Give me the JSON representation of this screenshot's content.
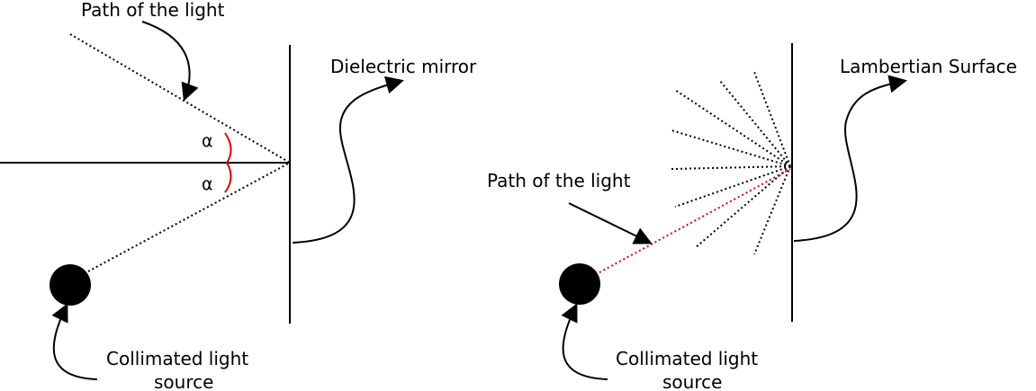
{
  "colors": {
    "ink": "#000000",
    "angle_marks": "#e00000",
    "emitted_ray": "#e00000",
    "background": "#ffffff"
  },
  "specular": {
    "path_label": "Path of the light",
    "mirror_label": "Dielectric mirror",
    "source_label_line1": "Collimated light",
    "source_label_line2": "source",
    "angle_symbol_incident": "α",
    "angle_symbol_reflected": "α"
  },
  "diffuse": {
    "path_label": "Path of the light",
    "surface_label": "Lambertian Surface",
    "source_label_line1": "Collimated light",
    "source_label_line2": "source"
  },
  "icons": [
    "curved-arrow-icon",
    "straight-arrow-icon",
    "light-source-dot-icon"
  ]
}
